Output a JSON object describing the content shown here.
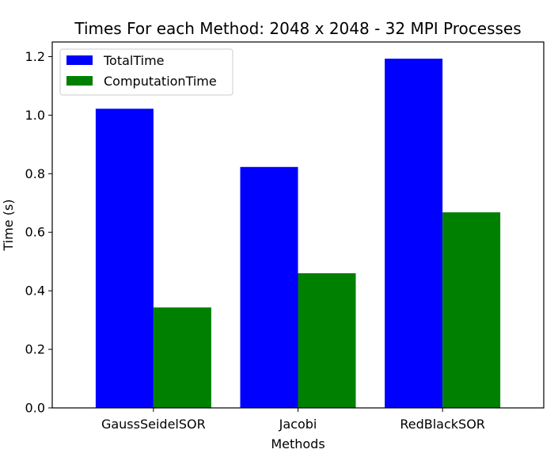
{
  "chart_data": {
    "type": "bar",
    "title": "Times For each Method: 2048 x 2048 - 32 MPI Processes",
    "xlabel": "Methods",
    "ylabel": "Time (s)",
    "categories": [
      "GaussSeidelSOR",
      "Jacobi",
      "RedBlackSOR"
    ],
    "series": [
      {
        "name": "TotalTime",
        "color": "#0000ff",
        "values": [
          1.022,
          0.823,
          1.193
        ]
      },
      {
        "name": "ComputationTime",
        "color": "#008000",
        "values": [
          0.343,
          0.46,
          0.668
        ]
      }
    ],
    "ylim": [
      0,
      1.25
    ],
    "yticks": [
      "0.0",
      "0.2",
      "0.4",
      "0.6",
      "0.8",
      "1.0",
      "1.2"
    ],
    "legend_position": "top-left",
    "grid": false
  }
}
